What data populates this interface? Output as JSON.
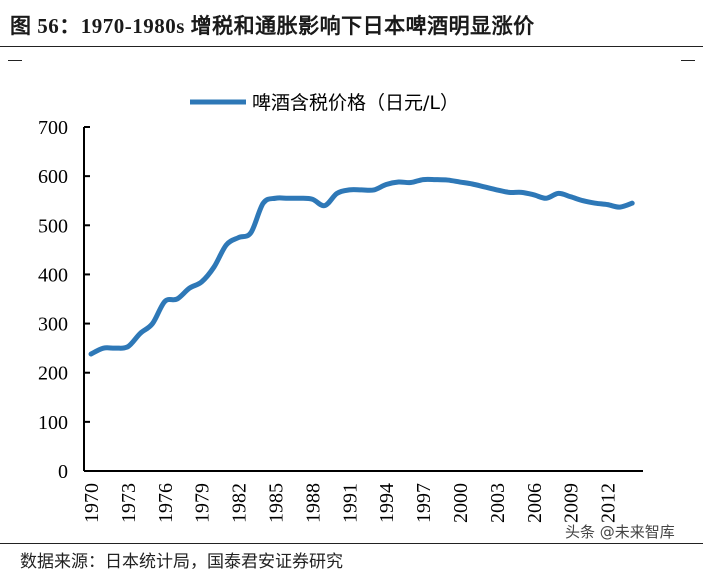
{
  "title": "图 56：1970-1980s 增税和通胀影响下日本啤酒明显涨价",
  "footer": "数据来源：日本统计局，国泰君安证券研究",
  "watermark": "头条 @未来智库",
  "chart_data": {
    "type": "line",
    "title": "",
    "xlabel": "",
    "ylabel": "",
    "ylim": [
      0,
      700
    ],
    "yticks": [
      0,
      100,
      200,
      300,
      400,
      500,
      600,
      700
    ],
    "xtick_labels": [
      "1970",
      "1973",
      "1976",
      "1979",
      "1982",
      "1985",
      "1988",
      "1991",
      "1994",
      "1997",
      "2000",
      "2003",
      "2006",
      "2009",
      "2012"
    ],
    "legend_position": "top",
    "grid": false,
    "series": [
      {
        "name": "啤酒含税价格（日元/L）",
        "color": "#2e78b7",
        "x": [
          1970,
          1971,
          1972,
          1973,
          1974,
          1975,
          1976,
          1977,
          1978,
          1979,
          1980,
          1981,
          1982,
          1983,
          1984,
          1985,
          1986,
          1987,
          1988,
          1989,
          1990,
          1991,
          1992,
          1993,
          1994,
          1995,
          1996,
          1997,
          1998,
          1999,
          2000,
          2001,
          2002,
          2003,
          2004,
          2005,
          2006,
          2007,
          2008,
          2009,
          2010,
          2011,
          2012,
          2013,
          2014
        ],
        "values": [
          238,
          250,
          250,
          253,
          280,
          300,
          345,
          350,
          372,
          385,
          415,
          460,
          475,
          485,
          545,
          555,
          555,
          555,
          553,
          540,
          565,
          572,
          572,
          572,
          583,
          588,
          587,
          593,
          593,
          592,
          588,
          584,
          578,
          572,
          567,
          567,
          562,
          555,
          565,
          558,
          550,
          545,
          542,
          537,
          545
        ]
      }
    ]
  }
}
